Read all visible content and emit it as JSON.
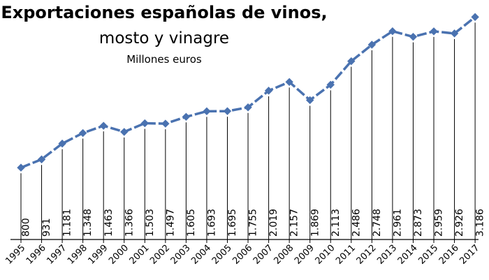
{
  "chart_data": {
    "type": "line",
    "title_line1": "Exportaciones españolas de vinos,",
    "title_line2": "mosto y vinagre",
    "subtitle": "Millones euros",
    "xlabel": "",
    "ylabel": "",
    "x": [
      "1995",
      "1996",
      "1997",
      "1998",
      "1999",
      "2000",
      "2001",
      "2002",
      "2003",
      "2004",
      "2005",
      "2006",
      "2007",
      "2008",
      "2009",
      "2010",
      "2011",
      "2012",
      "2013",
      "2014",
      "2015",
      "2016",
      "2017"
    ],
    "values": [
      800,
      931,
      1181,
      1348,
      1463,
      1366,
      1503,
      1497,
      1605,
      1693,
      1695,
      1755,
      2019,
      2157,
      1869,
      2113,
      2486,
      2748,
      2961,
      2873,
      2959,
      2926,
      3186
    ],
    "data_labels": [
      "800",
      "931",
      "1.181",
      "1.348",
      "1.463",
      "1.366",
      "1.503",
      "1.497",
      "1.605",
      "1.693",
      "1.695",
      "1.755",
      "2.019",
      "2.157",
      "1.869",
      "2.113",
      "2.486",
      "2.748",
      "2.961",
      "2.873",
      "2.959",
      "2.926",
      "3.186"
    ],
    "ylim": [
      0,
      3186
    ],
    "grid": false,
    "legend": "none",
    "line_style": "dashed",
    "colors": {
      "series": "#4a72b0",
      "drop_lines": "#000000",
      "text": "#000000"
    }
  }
}
